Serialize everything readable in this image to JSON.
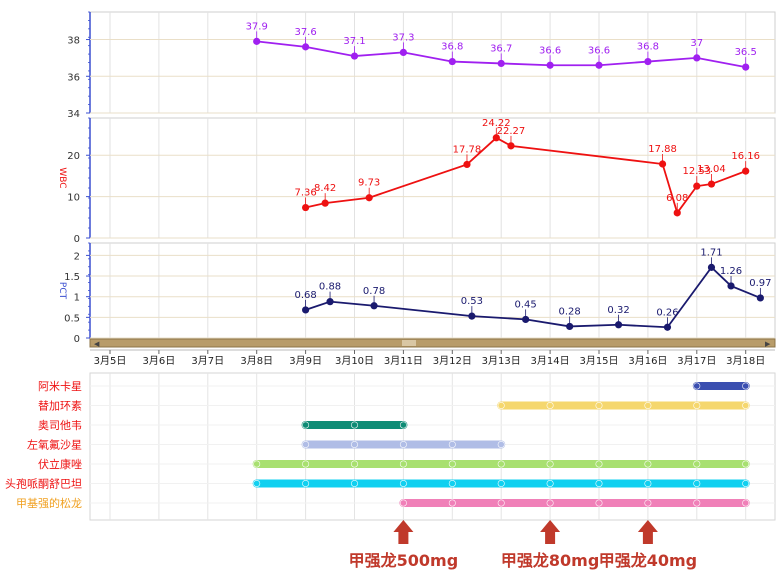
{
  "chart_data": [
    {
      "type": "line",
      "x_dates": [
        "3月8日",
        "3月9日",
        "3月10日",
        "3月11日",
        "3月12日",
        "3月13日",
        "3月14日",
        "3月15日",
        "3月16日",
        "3月17日",
        "3月18日"
      ],
      "series": [
        {
          "x": [
            "3月8日",
            "3月9日",
            "3月10日",
            "3月11日",
            "3月12日",
            "3月13日",
            "3月14日",
            "3月15日",
            "3月16日",
            "3月17日",
            "3月18日"
          ],
          "values": [
            37.9,
            37.6,
            37.1,
            37.3,
            36.8,
            36.7,
            36.6,
            36.6,
            36.8,
            37,
            36.5
          ],
          "labels": [
            "37.9",
            "37.6",
            "37.1",
            "37.3",
            "36.8",
            "36.7",
            "36.6",
            "36.6",
            "36.8",
            "37",
            "36.5"
          ],
          "color": "#a020f0"
        }
      ],
      "ylim": [
        34,
        39.5
      ],
      "yticks": [
        "34",
        "36",
        "38"
      ],
      "ylabel": ""
    },
    {
      "type": "line",
      "ylabel": "WBC",
      "ylim": [
        0,
        29
      ],
      "yticks": [
        "0",
        "10",
        "20"
      ],
      "series": [
        {
          "x": [
            "3月9日",
            "3月9日",
            "3月10日",
            "3月12日",
            "3月13日",
            "3月13日",
            "3月16日",
            "3月16日",
            "3月17日",
            "3月17日",
            "3月18日"
          ],
          "day_offset": [
            0.0,
            0.4,
            1.3,
            3.3,
            3.9,
            4.2,
            7.3,
            7.6,
            8.0,
            8.3,
            9.0
          ],
          "values": [
            7.36,
            8.42,
            9.73,
            17.78,
            24.22,
            22.27,
            17.88,
            6.08,
            12.53,
            13.04,
            16.16
          ],
          "labels": [
            "7.36",
            "8.42",
            "9.73",
            "17.78",
            "24.22",
            "22.27",
            "17.88",
            "6.08",
            "12.53",
            "13.04",
            "16.16"
          ],
          "color": "#ee1111"
        }
      ]
    },
    {
      "type": "line",
      "ylabel": "PCT",
      "ylim": [
        0,
        2.3
      ],
      "yticks": [
        "0",
        "0.5",
        "1",
        "1.5",
        "2"
      ],
      "series": [
        {
          "x": [
            "3月9日",
            "3月9日",
            "3月10日",
            "3月12日",
            "3月13日",
            "3月14日",
            "3月15日",
            "3月16日",
            "3月17日",
            "3月17日",
            "3月18日"
          ],
          "day_offset": [
            0.0,
            0.5,
            1.4,
            3.4,
            4.5,
            5.4,
            6.4,
            7.4,
            8.3,
            8.7,
            9.3
          ],
          "values": [
            0.68,
            0.88,
            0.78,
            0.53,
            0.45,
            0.28,
            0.32,
            0.26,
            1.71,
            1.26,
            0.97
          ],
          "labels": [
            "0.68",
            "0.88",
            "0.78",
            "0.53",
            "0.45",
            "0.28",
            "0.32",
            "0.26",
            "1.71",
            "1.26",
            "0.97"
          ],
          "color": "#1a1a6e"
        }
      ]
    },
    {
      "type": "gantt",
      "x_axis_labels": [
        "3月5日",
        "3月6日",
        "3月7日",
        "3月8日",
        "3月9日",
        "3月10日",
        "3月11日",
        "3月12日",
        "3月13日",
        "3月14日",
        "3月15日",
        "3月16日",
        "3月17日",
        "3月18日"
      ],
      "drugs": [
        {
          "name": "阿米卡星",
          "start": "3月17日",
          "end": "3月18日",
          "color": "#3b4fb0",
          "label_color": "#ee1111"
        },
        {
          "name": "替加环素",
          "start": "3月13日",
          "end": "3月18日",
          "color": "#f5d76e",
          "label_color": "#ee1111"
        },
        {
          "name": "奥司他韦",
          "start": "3月9日",
          "end": "3月11日",
          "color": "#0f8c76",
          "label_color": "#ee1111"
        },
        {
          "name": "左氧氟沙星",
          "start": "3月9日",
          "end": "3月13日",
          "color": "#b0bde6",
          "label_color": "#ee1111"
        },
        {
          "name": "伏立康唑",
          "start": "3月8日",
          "end": "3月18日",
          "color": "#a8e070",
          "label_color": "#ee1111"
        },
        {
          "name": "头孢哌酮舒巴坦",
          "start": "3月8日",
          "end": "3月18日",
          "color": "#10d0f0",
          "label_color": "#ee1111"
        },
        {
          "name": "甲基强的松龙",
          "start": "3月11日",
          "end": "3月18日",
          "color": "#f080b8",
          "label_color": "#f0a020"
        }
      ],
      "annotations": [
        {
          "text": "甲强龙500mg",
          "at": "3月11日"
        },
        {
          "text": "甲强龙80mg",
          "at": "3月14日"
        },
        {
          "text": "甲强龙40mg",
          "at": "3月16日"
        }
      ]
    }
  ]
}
